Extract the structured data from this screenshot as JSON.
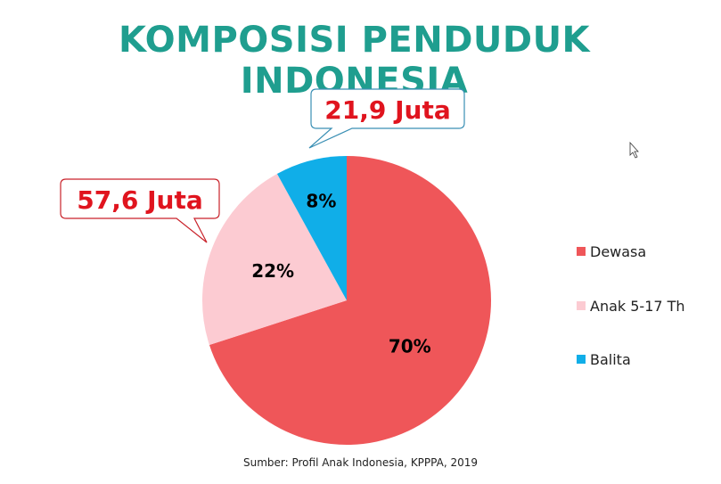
{
  "chart_data": {
    "type": "pie",
    "title": "KOMPOSISI PENDUDUK INDONESIA",
    "categories": [
      "Dewasa",
      "Anak 5-17 Th",
      "Balita"
    ],
    "values": [
      70,
      22,
      8
    ],
    "labels": [
      "70%",
      "22%",
      "8%"
    ],
    "colors": [
      "#ef5659",
      "#fccbd2",
      "#10aee8"
    ],
    "legend_position": "right",
    "callouts": [
      {
        "text": "57,6 Juta",
        "category": "Anak 5-17 Th"
      },
      {
        "text": "21,9 Juta",
        "category": "Balita"
      }
    ],
    "source": "Sumber: Profil Anak Indonesia, KPPPA, 2019"
  },
  "cursor": {
    "icon": "mouse-pointer-icon"
  }
}
